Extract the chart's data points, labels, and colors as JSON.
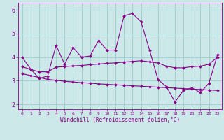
{
  "xlabel": "Windchill (Refroidissement éolien,°C)",
  "background_color": "#cce8e8",
  "line_color": "#880088",
  "grid_color": "#99cccc",
  "xlim": [
    -0.5,
    23.5
  ],
  "ylim": [
    1.8,
    6.3
  ],
  "yticks": [
    2,
    3,
    4,
    5,
    6
  ],
  "xticks": [
    0,
    1,
    2,
    3,
    4,
    5,
    6,
    7,
    8,
    9,
    10,
    11,
    12,
    13,
    14,
    15,
    16,
    17,
    18,
    19,
    20,
    21,
    22,
    23
  ],
  "line1": [
    4.0,
    3.5,
    3.1,
    3.2,
    4.5,
    3.7,
    4.4,
    4.0,
    4.05,
    4.7,
    4.3,
    4.3,
    5.75,
    5.85,
    5.5,
    4.3,
    3.05,
    2.75,
    2.1,
    2.6,
    2.7,
    2.5,
    2.9,
    4.1
  ],
  "line2": [
    3.6,
    3.48,
    3.38,
    3.38,
    3.58,
    3.6,
    3.63,
    3.65,
    3.68,
    3.71,
    3.74,
    3.76,
    3.79,
    3.82,
    3.85,
    3.8,
    3.75,
    3.62,
    3.55,
    3.55,
    3.6,
    3.62,
    3.7,
    4.0
  ],
  "line3": [
    3.3,
    3.22,
    3.14,
    3.06,
    3.02,
    2.98,
    2.95,
    2.92,
    2.9,
    2.87,
    2.85,
    2.83,
    2.81,
    2.79,
    2.77,
    2.75,
    2.73,
    2.71,
    2.69,
    2.67,
    2.65,
    2.63,
    2.61,
    2.59
  ],
  "marker": "D",
  "markersize": 2.0,
  "linewidth": 0.8,
  "tick_fontsize_x": 4.5,
  "tick_fontsize_y": 6.0,
  "xlabel_fontsize": 5.5
}
